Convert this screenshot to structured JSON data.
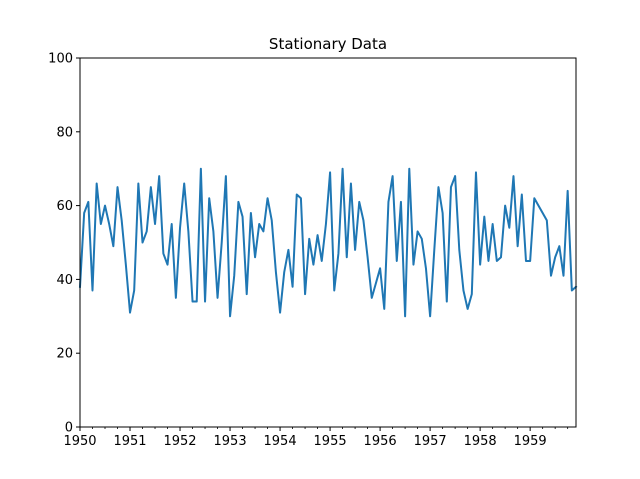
{
  "chart_data": {
    "type": "line",
    "title": "Stationary Data",
    "xlabel": "",
    "ylabel": "",
    "xlim": [
      "1950-01",
      "1959-12"
    ],
    "ylim": [
      0,
      100
    ],
    "x_ticks": [
      "1950",
      "1951",
      "1952",
      "1953",
      "1954",
      "1955",
      "1956",
      "1957",
      "1958",
      "1959"
    ],
    "y_ticks": [
      0,
      20,
      40,
      60,
      80,
      100
    ],
    "grid": false,
    "line_color": "#1f77b4",
    "series": [
      {
        "x": [
          "1950-01",
          "1950-02",
          "1950-03",
          "1950-04",
          "1950-05",
          "1950-06",
          "1950-07",
          "1950-08",
          "1950-09",
          "1950-10",
          "1950-11",
          "1950-12",
          "1951-01",
          "1951-02",
          "1951-03",
          "1951-04",
          "1951-05",
          "1951-06",
          "1951-07",
          "1951-08",
          "1951-09",
          "1951-10",
          "1951-11",
          "1951-12",
          "1952-01",
          "1952-02",
          "1952-03",
          "1952-04",
          "1952-05",
          "1952-06",
          "1952-07",
          "1952-08",
          "1952-09",
          "1952-10",
          "1952-11",
          "1952-12",
          "1953-01",
          "1953-02",
          "1953-03",
          "1953-04",
          "1953-05",
          "1953-06",
          "1953-07",
          "1953-08",
          "1953-09",
          "1953-10",
          "1953-11",
          "1953-12",
          "1954-01",
          "1954-02",
          "1954-03",
          "1954-04",
          "1954-05",
          "1954-06",
          "1954-07",
          "1954-08",
          "1954-09",
          "1954-10",
          "1954-11",
          "1954-12",
          "1955-01",
          "1955-02",
          "1955-03",
          "1955-04",
          "1955-05",
          "1955-06",
          "1955-07",
          "1955-08",
          "1955-09",
          "1955-10",
          "1955-11",
          "1955-12",
          "1956-01",
          "1956-02",
          "1956-03",
          "1956-04",
          "1956-05",
          "1956-06",
          "1956-07",
          "1956-08",
          "1956-09",
          "1956-10",
          "1956-11",
          "1956-12",
          "1957-01",
          "1957-02",
          "1957-03",
          "1957-04",
          "1957-05",
          "1957-06",
          "1957-07",
          "1957-08",
          "1957-09",
          "1957-10",
          "1957-11",
          "1957-12",
          "1958-01",
          "1958-02",
          "1958-03",
          "1958-04",
          "1958-05",
          "1958-06",
          "1958-07",
          "1958-08",
          "1958-09",
          "1958-10",
          "1958-11",
          "1958-12",
          "1959-01",
          "1959-02",
          "1959-03",
          "1959-04",
          "1959-05",
          "1959-06",
          "1959-07",
          "1959-08",
          "1959-09",
          "1959-10",
          "1959-11",
          "1959-12"
        ],
        "values": [
          38,
          58,
          61,
          37,
          66,
          55,
          60,
          55,
          49,
          65,
          56,
          44,
          31,
          37,
          66,
          50,
          53,
          65,
          55,
          68,
          47,
          44,
          55,
          35,
          54,
          66,
          53,
          34,
          34,
          70,
          34,
          62,
          53,
          35,
          50,
          68,
          30,
          41,
          61,
          57,
          36,
          58,
          46,
          55,
          53,
          62,
          56,
          42,
          31,
          42,
          48,
          38,
          63,
          62,
          36,
          51,
          44,
          52,
          45,
          55,
          69,
          37,
          47,
          70,
          46,
          66,
          48,
          61,
          56,
          46,
          35,
          39,
          43,
          32,
          61,
          68,
          45,
          61,
          30,
          70,
          44,
          53,
          51,
          43,
          30,
          48,
          65,
          58,
          34,
          65,
          68,
          48,
          37,
          32,
          36,
          69,
          44,
          57,
          45,
          55,
          45,
          46,
          60,
          54,
          68,
          49,
          63,
          45,
          45,
          62,
          60,
          58,
          56,
          41,
          46,
          49,
          41,
          64,
          37,
          38
        ]
      }
    ]
  }
}
